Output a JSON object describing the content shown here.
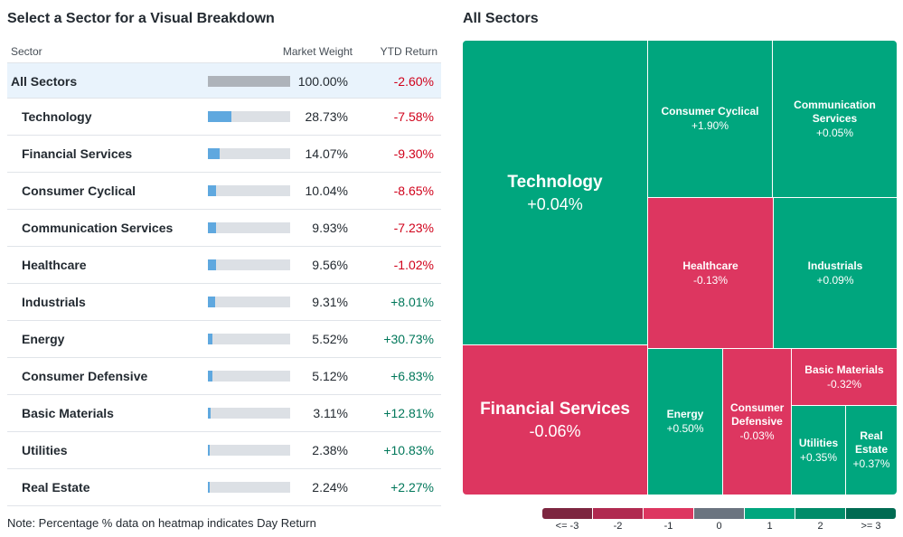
{
  "left_title": "Select a Sector for a Visual Breakdown",
  "right_title": "All Sectors",
  "table": {
    "headers": {
      "sector": "Sector",
      "weight": "Market Weight",
      "ytd": "YTD Return"
    },
    "rows": [
      {
        "name": "All Sectors",
        "weight": "100.00%",
        "weight_value": 100.0,
        "ytd": "-2.60%"
      },
      {
        "name": "Technology",
        "weight": "28.73%",
        "weight_value": 28.73,
        "ytd": "-7.58%"
      },
      {
        "name": "Financial Services",
        "weight": "14.07%",
        "weight_value": 14.07,
        "ytd": "-9.30%"
      },
      {
        "name": "Consumer Cyclical",
        "weight": "10.04%",
        "weight_value": 10.04,
        "ytd": "-8.65%"
      },
      {
        "name": "Communication Services",
        "weight": "9.93%",
        "weight_value": 9.93,
        "ytd": "-7.23%"
      },
      {
        "name": "Healthcare",
        "weight": "9.56%",
        "weight_value": 9.56,
        "ytd": "-1.02%"
      },
      {
        "name": "Industrials",
        "weight": "9.31%",
        "weight_value": 9.31,
        "ytd": "+8.01%"
      },
      {
        "name": "Energy",
        "weight": "5.52%",
        "weight_value": 5.52,
        "ytd": "+30.73%"
      },
      {
        "name": "Consumer Defensive",
        "weight": "5.12%",
        "weight_value": 5.12,
        "ytd": "+6.83%"
      },
      {
        "name": "Basic Materials",
        "weight": "3.11%",
        "weight_value": 3.11,
        "ytd": "+12.81%"
      },
      {
        "name": "Utilities",
        "weight": "2.38%",
        "weight_value": 2.38,
        "ytd": "+10.83%"
      },
      {
        "name": "Real Estate",
        "weight": "2.24%",
        "weight_value": 2.24,
        "ytd": "+2.27%"
      }
    ]
  },
  "note": "Note: Percentage % data on heatmap indicates Day Return",
  "colors": {
    "positive": "#00a67e",
    "negative": "#dd3660",
    "text_negative": "#d0021b",
    "text_positive": "#00775a"
  },
  "chart_data": {
    "type": "treemap",
    "title": "All Sectors",
    "size_metric": "Market Weight",
    "color_metric": "Day Return",
    "tiles": [
      {
        "name": "Technology",
        "label": "+0.04%",
        "value": 0.04
      },
      {
        "name": "Consumer Cyclical",
        "label": "+1.90%",
        "value": 1.9
      },
      {
        "name": "Communication Services",
        "label": "+0.05%",
        "value": 0.05
      },
      {
        "name": "Healthcare",
        "label": "-0.13%",
        "value": -0.13
      },
      {
        "name": "Industrials",
        "label": "+0.09%",
        "value": 0.09
      },
      {
        "name": "Financial Services",
        "label": "-0.06%",
        "value": -0.06
      },
      {
        "name": "Energy",
        "label": "+0.50%",
        "value": 0.5
      },
      {
        "name": "Consumer Defensive",
        "label": "-0.03%",
        "value": -0.03
      },
      {
        "name": "Basic Materials",
        "label": "-0.32%",
        "value": -0.32
      },
      {
        "name": "Utilities",
        "label": "+0.35%",
        "value": 0.35
      },
      {
        "name": "Real Estate",
        "label": "+0.37%",
        "value": 0.37
      }
    ],
    "legend": [
      {
        "label": "<= -3",
        "color": "#7d2640"
      },
      {
        "label": "-2",
        "color": "#b02a50"
      },
      {
        "label": "-1",
        "color": "#dd3660"
      },
      {
        "label": "0",
        "color": "#6b7480"
      },
      {
        "label": "1",
        "color": "#00a67e"
      },
      {
        "label": "2",
        "color": "#008c69"
      },
      {
        "label": ">= 3",
        "color": "#006b52"
      }
    ]
  }
}
